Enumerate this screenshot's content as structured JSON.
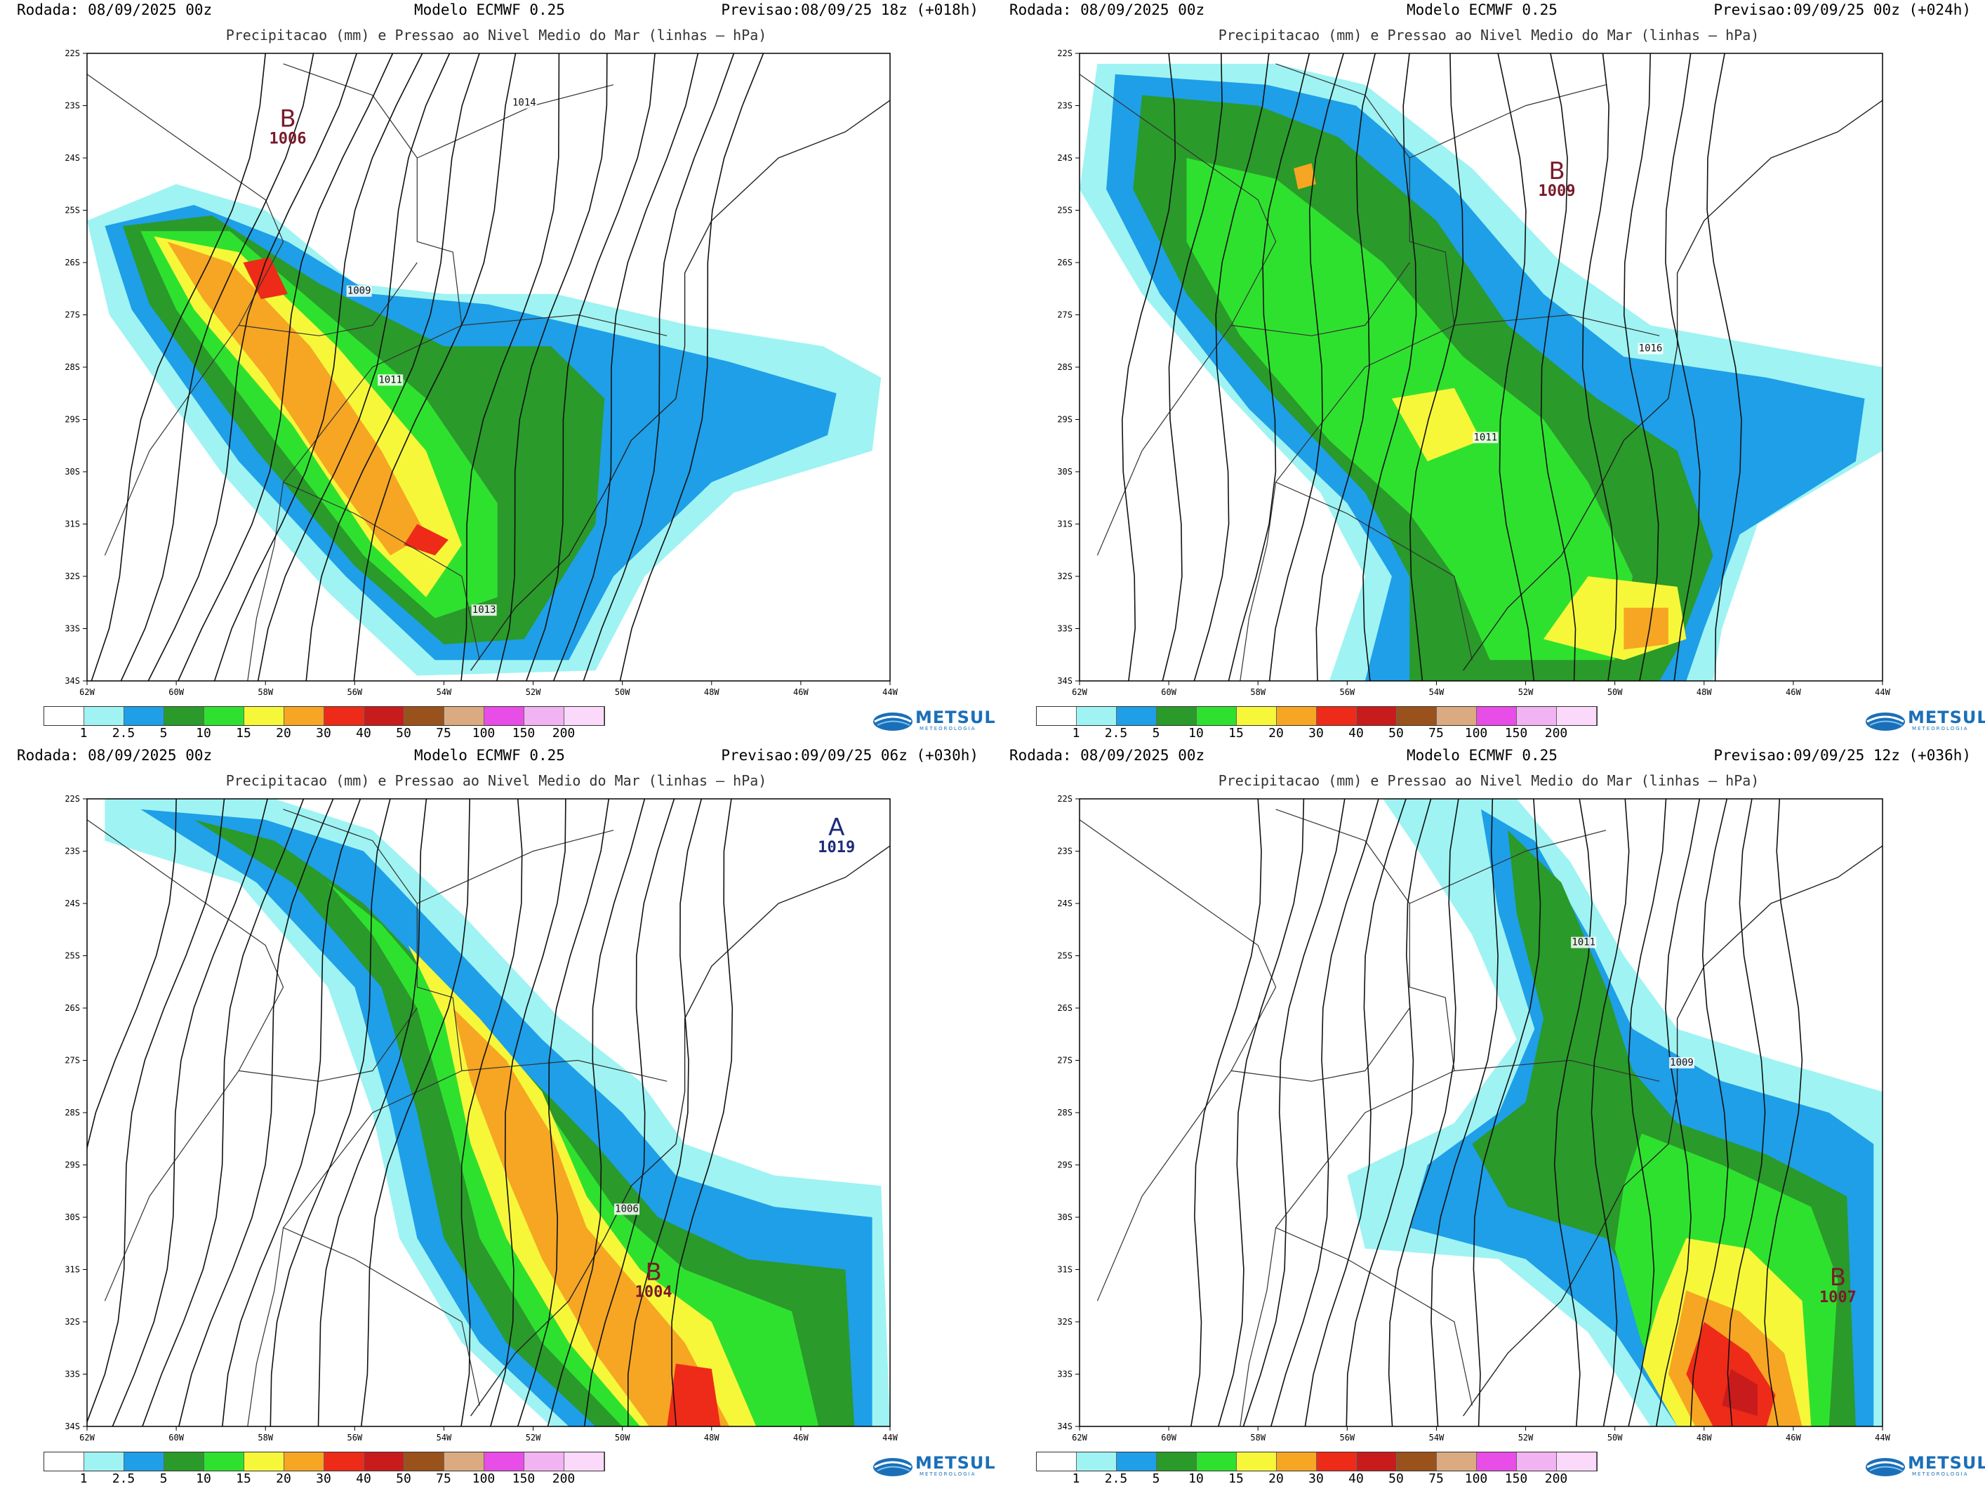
{
  "subtitle": "Precipitacao (mm) e Pressao ao Nivel Medio do Mar (linhas – hPa)",
  "model_label": "Modelo ECMWF 0.25",
  "colorbar": {
    "labels": [
      "1",
      "2.5",
      "5",
      "10",
      "15",
      "20",
      "30",
      "40",
      "50",
      "75",
      "100",
      "150",
      "200"
    ],
    "colors": [
      "#ffffff",
      "#9ff3f3",
      "#1e9fe8",
      "#2a9a2a",
      "#2fe12f",
      "#f7f73a",
      "#f6a623",
      "#ee2b18",
      "#c81c1c",
      "#9a521c",
      "#dcaa80",
      "#e84de8",
      "#f2b3f2",
      "#fbd9fb"
    ]
  },
  "logo": {
    "name": "METSUL",
    "sub": "METEOROLOGIA"
  },
  "axes": {
    "lat_labels": [
      "22S",
      "23S",
      "24S",
      "25S",
      "26S",
      "27S",
      "28S",
      "29S",
      "30S",
      "31S",
      "32S",
      "33S",
      "34S"
    ],
    "lon_labels": [
      "62W",
      "60W",
      "58W",
      "56W",
      "54W",
      "52W",
      "50W",
      "48W",
      "46W",
      "44W"
    ]
  },
  "panels": [
    {
      "run": "Rodada: 08/09/2025 00z",
      "forecast": "Previsao:08/09/25 18z (+018h)",
      "centers": [
        {
          "type": "B",
          "value": "1006",
          "lon": -57.5,
          "lat": -23.4,
          "color": "#7a1a2a"
        }
      ],
      "isobar_labels": [
        {
          "text": "1014",
          "lon": -52.2,
          "lat": -23.0
        },
        {
          "text": "1009",
          "lon": -55.9,
          "lat": -26.6
        },
        {
          "text": "1011",
          "lon": -55.2,
          "lat": -28.3
        },
        {
          "text": "1013",
          "lon": -53.1,
          "lat": -32.7
        }
      ]
    },
    {
      "run": "Rodada: 08/09/2025 00z",
      "forecast": "Previsao:09/09/25 00z (+024h)",
      "centers": [
        {
          "type": "B",
          "value": "1009",
          "lon": -51.3,
          "lat": -24.4,
          "color": "#7a1a2a"
        }
      ],
      "isobar_labels": [
        {
          "text": "1016",
          "lon": -49.2,
          "lat": -27.7
        },
        {
          "text": "1011",
          "lon": -52.9,
          "lat": -29.4
        }
      ]
    },
    {
      "run": "Rodada: 08/09/2025 00z",
      "forecast": "Previsao:09/09/25 06z (+030h)",
      "centers": [
        {
          "type": "A",
          "value": "1019",
          "lon": -45.2,
          "lat": -22.7,
          "color": "#1c2a7a"
        },
        {
          "type": "B",
          "value": "1004",
          "lon": -49.3,
          "lat": -31.2,
          "color": "#7a1a2a"
        }
      ],
      "isobar_labels": [
        {
          "text": "1006",
          "lon": -49.9,
          "lat": -29.9
        }
      ]
    },
    {
      "run": "Rodada: 08/09/2025 00z",
      "forecast": "Previsao:09/09/25 12z (+036h)",
      "centers": [
        {
          "type": "B",
          "value": "1007",
          "lon": -45.0,
          "lat": -31.3,
          "color": "#7a1a2a"
        }
      ],
      "isobar_labels": [
        {
          "text": "1011",
          "lon": -50.7,
          "lat": -24.8
        },
        {
          "text": "1009",
          "lon": -48.5,
          "lat": -27.1
        }
      ]
    }
  ]
}
